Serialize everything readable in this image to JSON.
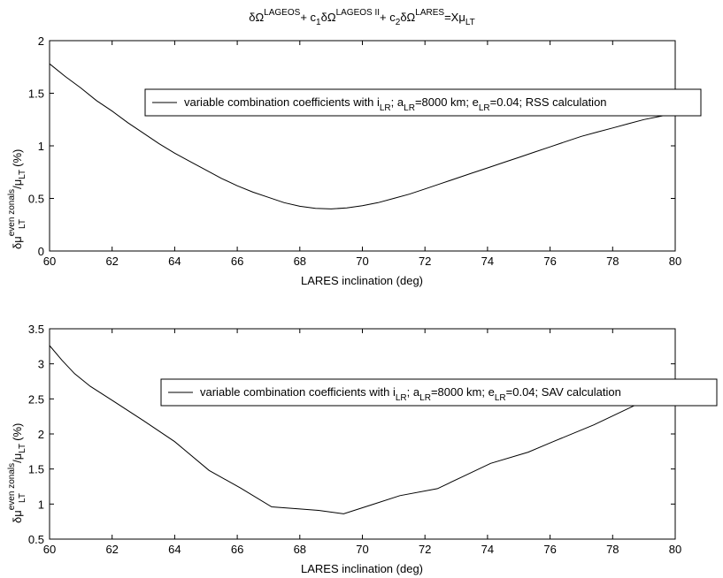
{
  "figure": {
    "title_parts": {
      "d1": "δΩ",
      "s1": "LAGEOS",
      "plus1": "+ c",
      "sub1": "1",
      "d2": "δΩ",
      "s2": "LAGEOS II",
      "plus2": "+ c",
      "sub2": "2",
      "d3": "δΩ",
      "s3": "LARES",
      "eq": "=Xμ",
      "sub3": "LT"
    }
  },
  "ylabel_parts": {
    "dmu": "δμ",
    "sup": "even zonals",
    "sub": "LT",
    "slash": "/μ",
    "sub2": "LT",
    "pct": "(%)"
  },
  "chart_data": [
    {
      "type": "line",
      "xlabel": "LARES inclination (deg)",
      "xlim": [
        60,
        80
      ],
      "ylim": [
        0,
        2
      ],
      "xticks": [
        "60",
        "62",
        "64",
        "66",
        "68",
        "70",
        "72",
        "74",
        "76",
        "78",
        "80"
      ],
      "yticks": [
        "0",
        "0.5",
        "1",
        "1.5",
        "2"
      ],
      "grid": false,
      "legend_position": "top-right",
      "legend": {
        "t1": "variable combination coefficients with i",
        "s1": "LR",
        "t2": "; a",
        "s2": "LR",
        "t3": "=8000 km; e",
        "s3": "LR",
        "t4": "=0.04; RSS calculation"
      },
      "series": [
        {
          "x": [
            60,
            60.5,
            61,
            61.5,
            62,
            62.5,
            63,
            63.5,
            64,
            64.5,
            65,
            65.5,
            66,
            66.5,
            67,
            67.5,
            68,
            68.5,
            69,
            69.5,
            70,
            70.5,
            71,
            71.5,
            72,
            72.5,
            73,
            73.5,
            74,
            74.5,
            75,
            75.5,
            76,
            76.5,
            77,
            77.5,
            78,
            78.5,
            79,
            79.5,
            80
          ],
          "y": [
            1.78,
            1.66,
            1.55,
            1.43,
            1.33,
            1.22,
            1.12,
            1.02,
            0.93,
            0.85,
            0.77,
            0.69,
            0.62,
            0.56,
            0.51,
            0.46,
            0.425,
            0.405,
            0.4,
            0.41,
            0.43,
            0.46,
            0.5,
            0.54,
            0.59,
            0.64,
            0.69,
            0.74,
            0.79,
            0.84,
            0.89,
            0.94,
            0.99,
            1.04,
            1.09,
            1.13,
            1.17,
            1.21,
            1.25,
            1.28,
            1.31
          ]
        }
      ]
    },
    {
      "type": "line",
      "xlabel": "LARES inclination (deg)",
      "xlim": [
        60,
        80
      ],
      "ylim": [
        0.5,
        3.5
      ],
      "xticks": [
        "60",
        "62",
        "64",
        "66",
        "68",
        "70",
        "72",
        "74",
        "76",
        "78",
        "80"
      ],
      "yticks": [
        "0.5",
        "1",
        "1.5",
        "2",
        "2.5",
        "3",
        "3.5"
      ],
      "grid": false,
      "legend_position": "top-right",
      "legend": {
        "t1": "variable combination coefficients with i",
        "s1": "LR",
        "t2": "; a",
        "s2": "LR",
        "t3": "=8000 km; e",
        "s3": "LR",
        "t4": "=0.04; SAV calculation"
      },
      "series": [
        {
          "x": [
            60,
            60.4,
            60.8,
            61.3,
            62,
            63,
            64,
            65.1,
            66.1,
            67.1,
            68,
            68.6,
            69.4,
            70.3,
            71.2,
            72.4,
            73.2,
            74.1,
            75.3,
            76.1,
            77.4,
            78.3,
            79.1,
            80
          ],
          "y": [
            3.26,
            3.05,
            2.86,
            2.68,
            2.48,
            2.19,
            1.89,
            1.48,
            1.23,
            0.96,
            0.93,
            0.91,
            0.86,
            0.99,
            1.12,
            1.22,
            1.39,
            1.58,
            1.74,
            1.89,
            2.13,
            2.32,
            2.49,
            2.58
          ]
        }
      ]
    }
  ]
}
